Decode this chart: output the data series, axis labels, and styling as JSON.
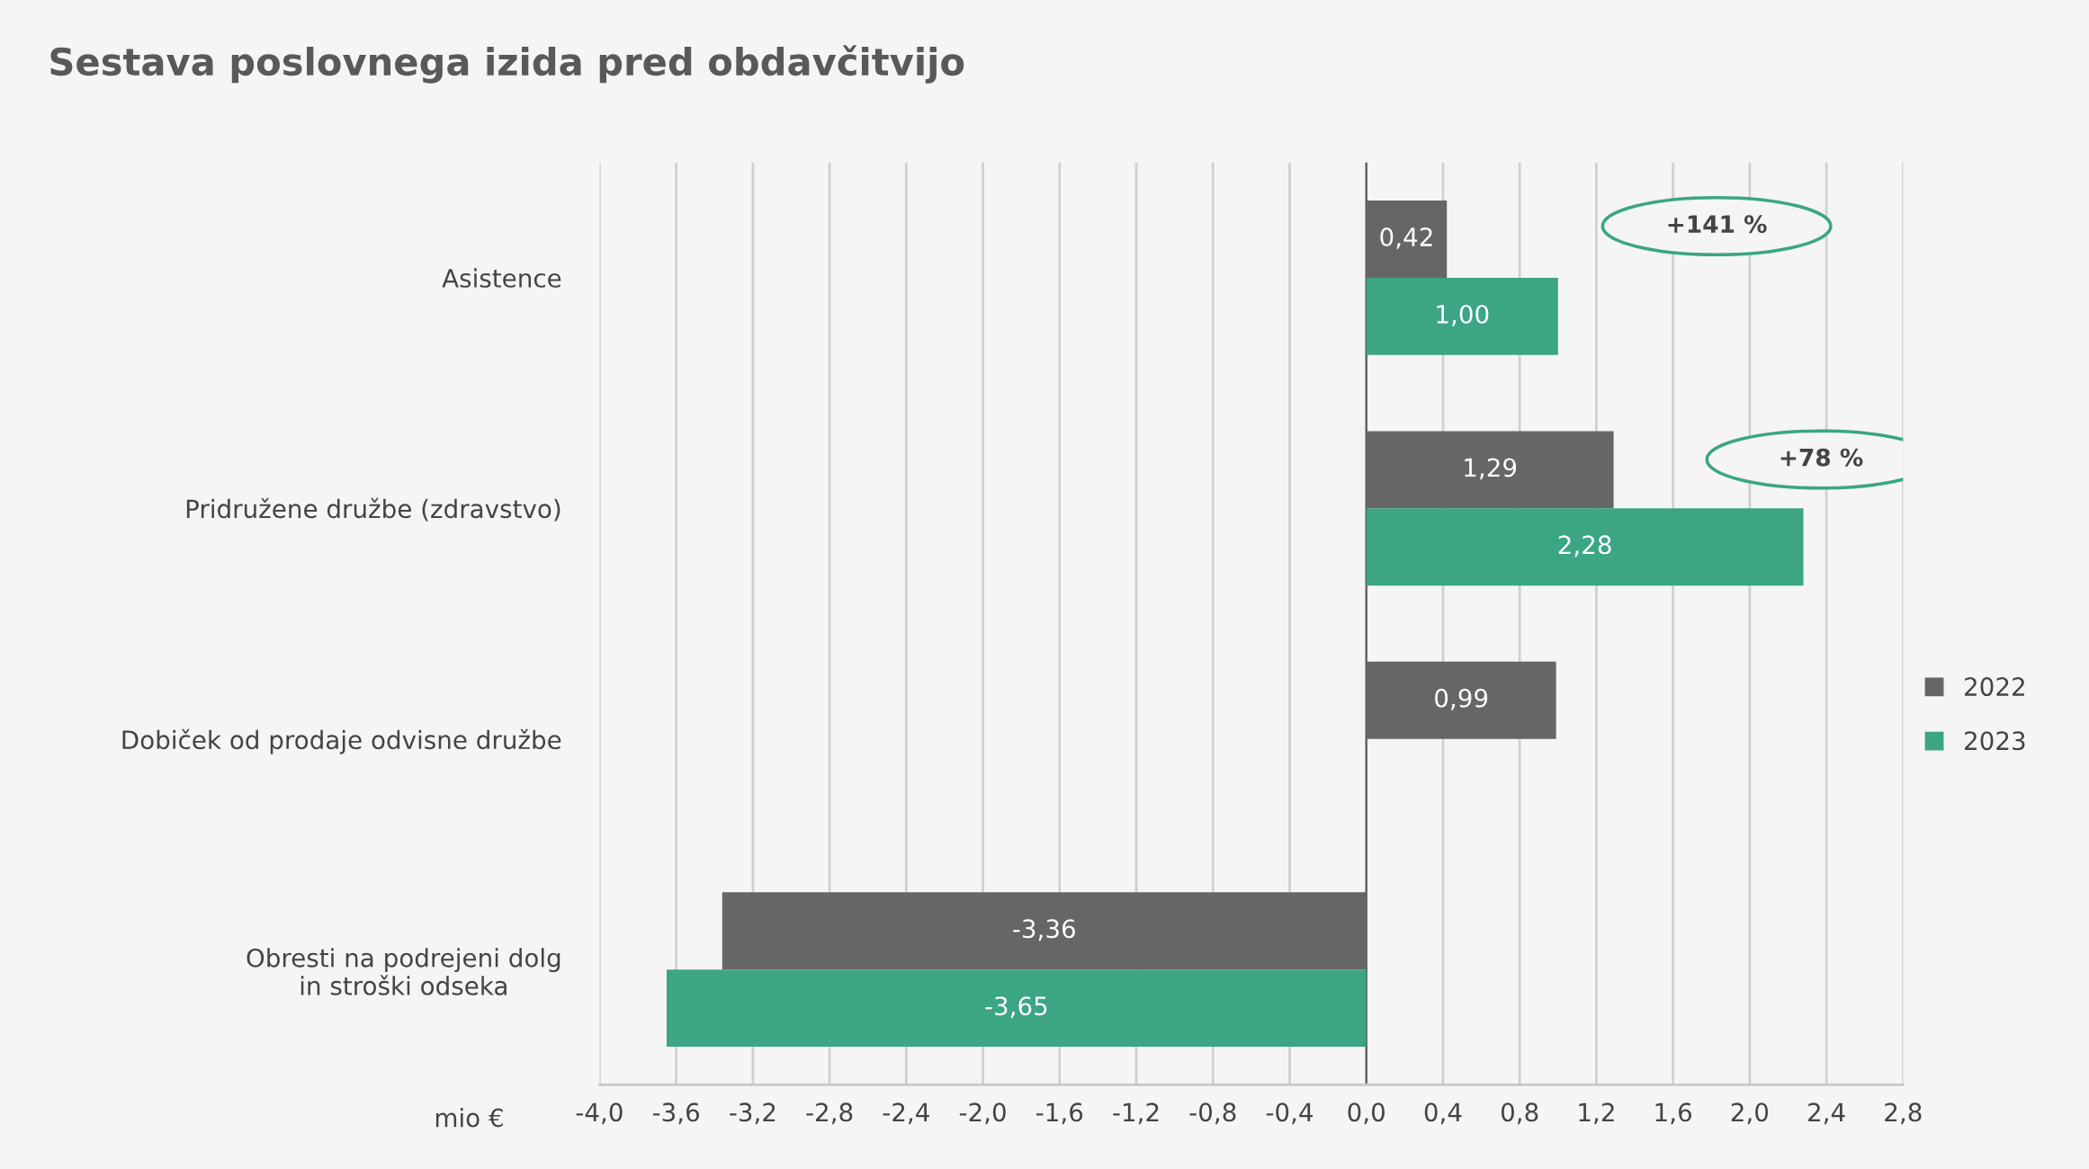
{
  "chart_data": {
    "type": "bar",
    "orientation": "horizontal",
    "title": "Sestava poslovnega izida pred obdavčitvijo",
    "xlabel": "mio €",
    "categories": [
      "Asistence",
      "Pridružene družbe (zdravstvo)",
      "Dobiček od prodaje odvisne družbe",
      "Obresti na podrejeni dolg\nin stroški odseka"
    ],
    "series": [
      {
        "name": "2022",
        "color": "#666666",
        "values": [
          0.42,
          1.29,
          0.99,
          -3.36
        ],
        "value_labels": [
          "0,42",
          "1,29",
          "0,99",
          "-3,36"
        ]
      },
      {
        "name": "2023",
        "color": "#3ba584",
        "values": [
          1.0,
          2.28,
          null,
          -3.65
        ],
        "value_labels": [
          "1,00",
          "2,28",
          null,
          "-3,65"
        ]
      }
    ],
    "xlim": [
      -4.0,
      2.8
    ],
    "xticks": [
      {
        "value": -4.0,
        "label": "-4,0"
      },
      {
        "value": -3.6,
        "label": "-3,6"
      },
      {
        "value": -3.2,
        "label": "-3,2"
      },
      {
        "value": -2.8,
        "label": "-2,8"
      },
      {
        "value": -2.4,
        "label": "-2,4"
      },
      {
        "value": -2.0,
        "label": "-2,0"
      },
      {
        "value": -1.6,
        "label": "-1,6"
      },
      {
        "value": -1.2,
        "label": "-1,2"
      },
      {
        "value": -0.8,
        "label": "-0,8"
      },
      {
        "value": -0.4,
        "label": "-0,4"
      },
      {
        "value": 0.0,
        "label": "0,0"
      },
      {
        "value": 0.4,
        "label": "0,4"
      },
      {
        "value": 0.8,
        "label": "0,8"
      },
      {
        "value": 1.2,
        "label": "1,2"
      },
      {
        "value": 1.6,
        "label": "1,6"
      },
      {
        "value": 2.0,
        "label": "2,0"
      },
      {
        "value": 2.4,
        "label": "2,4"
      },
      {
        "value": 2.8,
        "label": "2,8"
      }
    ],
    "annotations": [
      "+141 %",
      "+78 %"
    ],
    "grid": "x",
    "legend": "right"
  }
}
